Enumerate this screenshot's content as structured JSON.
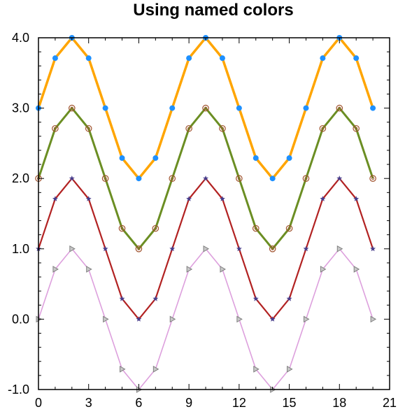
{
  "chart_data": {
    "type": "line",
    "title": "Using named colors",
    "xlabel": "",
    "ylabel": "",
    "xlim": [
      0,
      21
    ],
    "ylim": [
      -1.0,
      4.0
    ],
    "x_ticks": [
      0,
      3,
      6,
      9,
      12,
      15,
      18,
      21
    ],
    "x_tick_labels": [
      "0",
      "3",
      "6",
      "9",
      "12",
      "15",
      "18",
      "21"
    ],
    "y_ticks": [
      -1.0,
      0.0,
      1.0,
      2.0,
      3.0,
      4.0
    ],
    "y_tick_labels": [
      "-1.0",
      "0.0",
      "1.0",
      "2.0",
      "3.0",
      "4.0"
    ],
    "grid": false,
    "x": [
      0,
      1,
      2,
      3,
      4,
      5,
      6,
      7,
      8,
      9,
      10,
      11,
      12,
      13,
      14,
      15,
      16,
      17,
      18,
      19,
      20
    ],
    "series": [
      {
        "line_color": "#ffa500",
        "marker": "filled-circle",
        "marker_color": "#1e90ff",
        "values": [
          3.0,
          3.71,
          4.0,
          3.71,
          3.0,
          2.29,
          2.0,
          2.29,
          3.0,
          3.71,
          4.0,
          3.71,
          3.0,
          2.29,
          2.0,
          2.29,
          3.0,
          3.71,
          4.0,
          3.71,
          3.0
        ]
      },
      {
        "line_color": "#6b8e23",
        "marker": "hollow-circle",
        "marker_color": "#a0522d",
        "values": [
          2.0,
          2.71,
          3.0,
          2.71,
          2.0,
          1.29,
          1.0,
          1.29,
          2.0,
          2.71,
          3.0,
          2.71,
          2.0,
          1.29,
          1.0,
          1.29,
          2.0,
          2.71,
          3.0,
          2.71,
          2.0
        ]
      },
      {
        "line_color": "#b22222",
        "marker": "star",
        "marker_color": "#483d8b",
        "values": [
          1.0,
          1.71,
          2.0,
          1.71,
          1.0,
          0.29,
          0.0,
          0.29,
          1.0,
          1.71,
          2.0,
          1.71,
          1.0,
          0.29,
          0.0,
          0.29,
          1.0,
          1.71,
          2.0,
          1.71,
          1.0
        ]
      },
      {
        "line_color": "#dda0dd",
        "marker": "triangle-right",
        "marker_color": "#808080",
        "values": [
          0.0,
          0.71,
          1.0,
          0.71,
          0.0,
          -0.71,
          -1.0,
          -0.71,
          0.0,
          0.71,
          1.0,
          0.71,
          0.0,
          -0.71,
          -1.0,
          -0.71,
          0.0,
          0.71,
          1.0,
          0.71,
          0.0
        ]
      }
    ]
  }
}
